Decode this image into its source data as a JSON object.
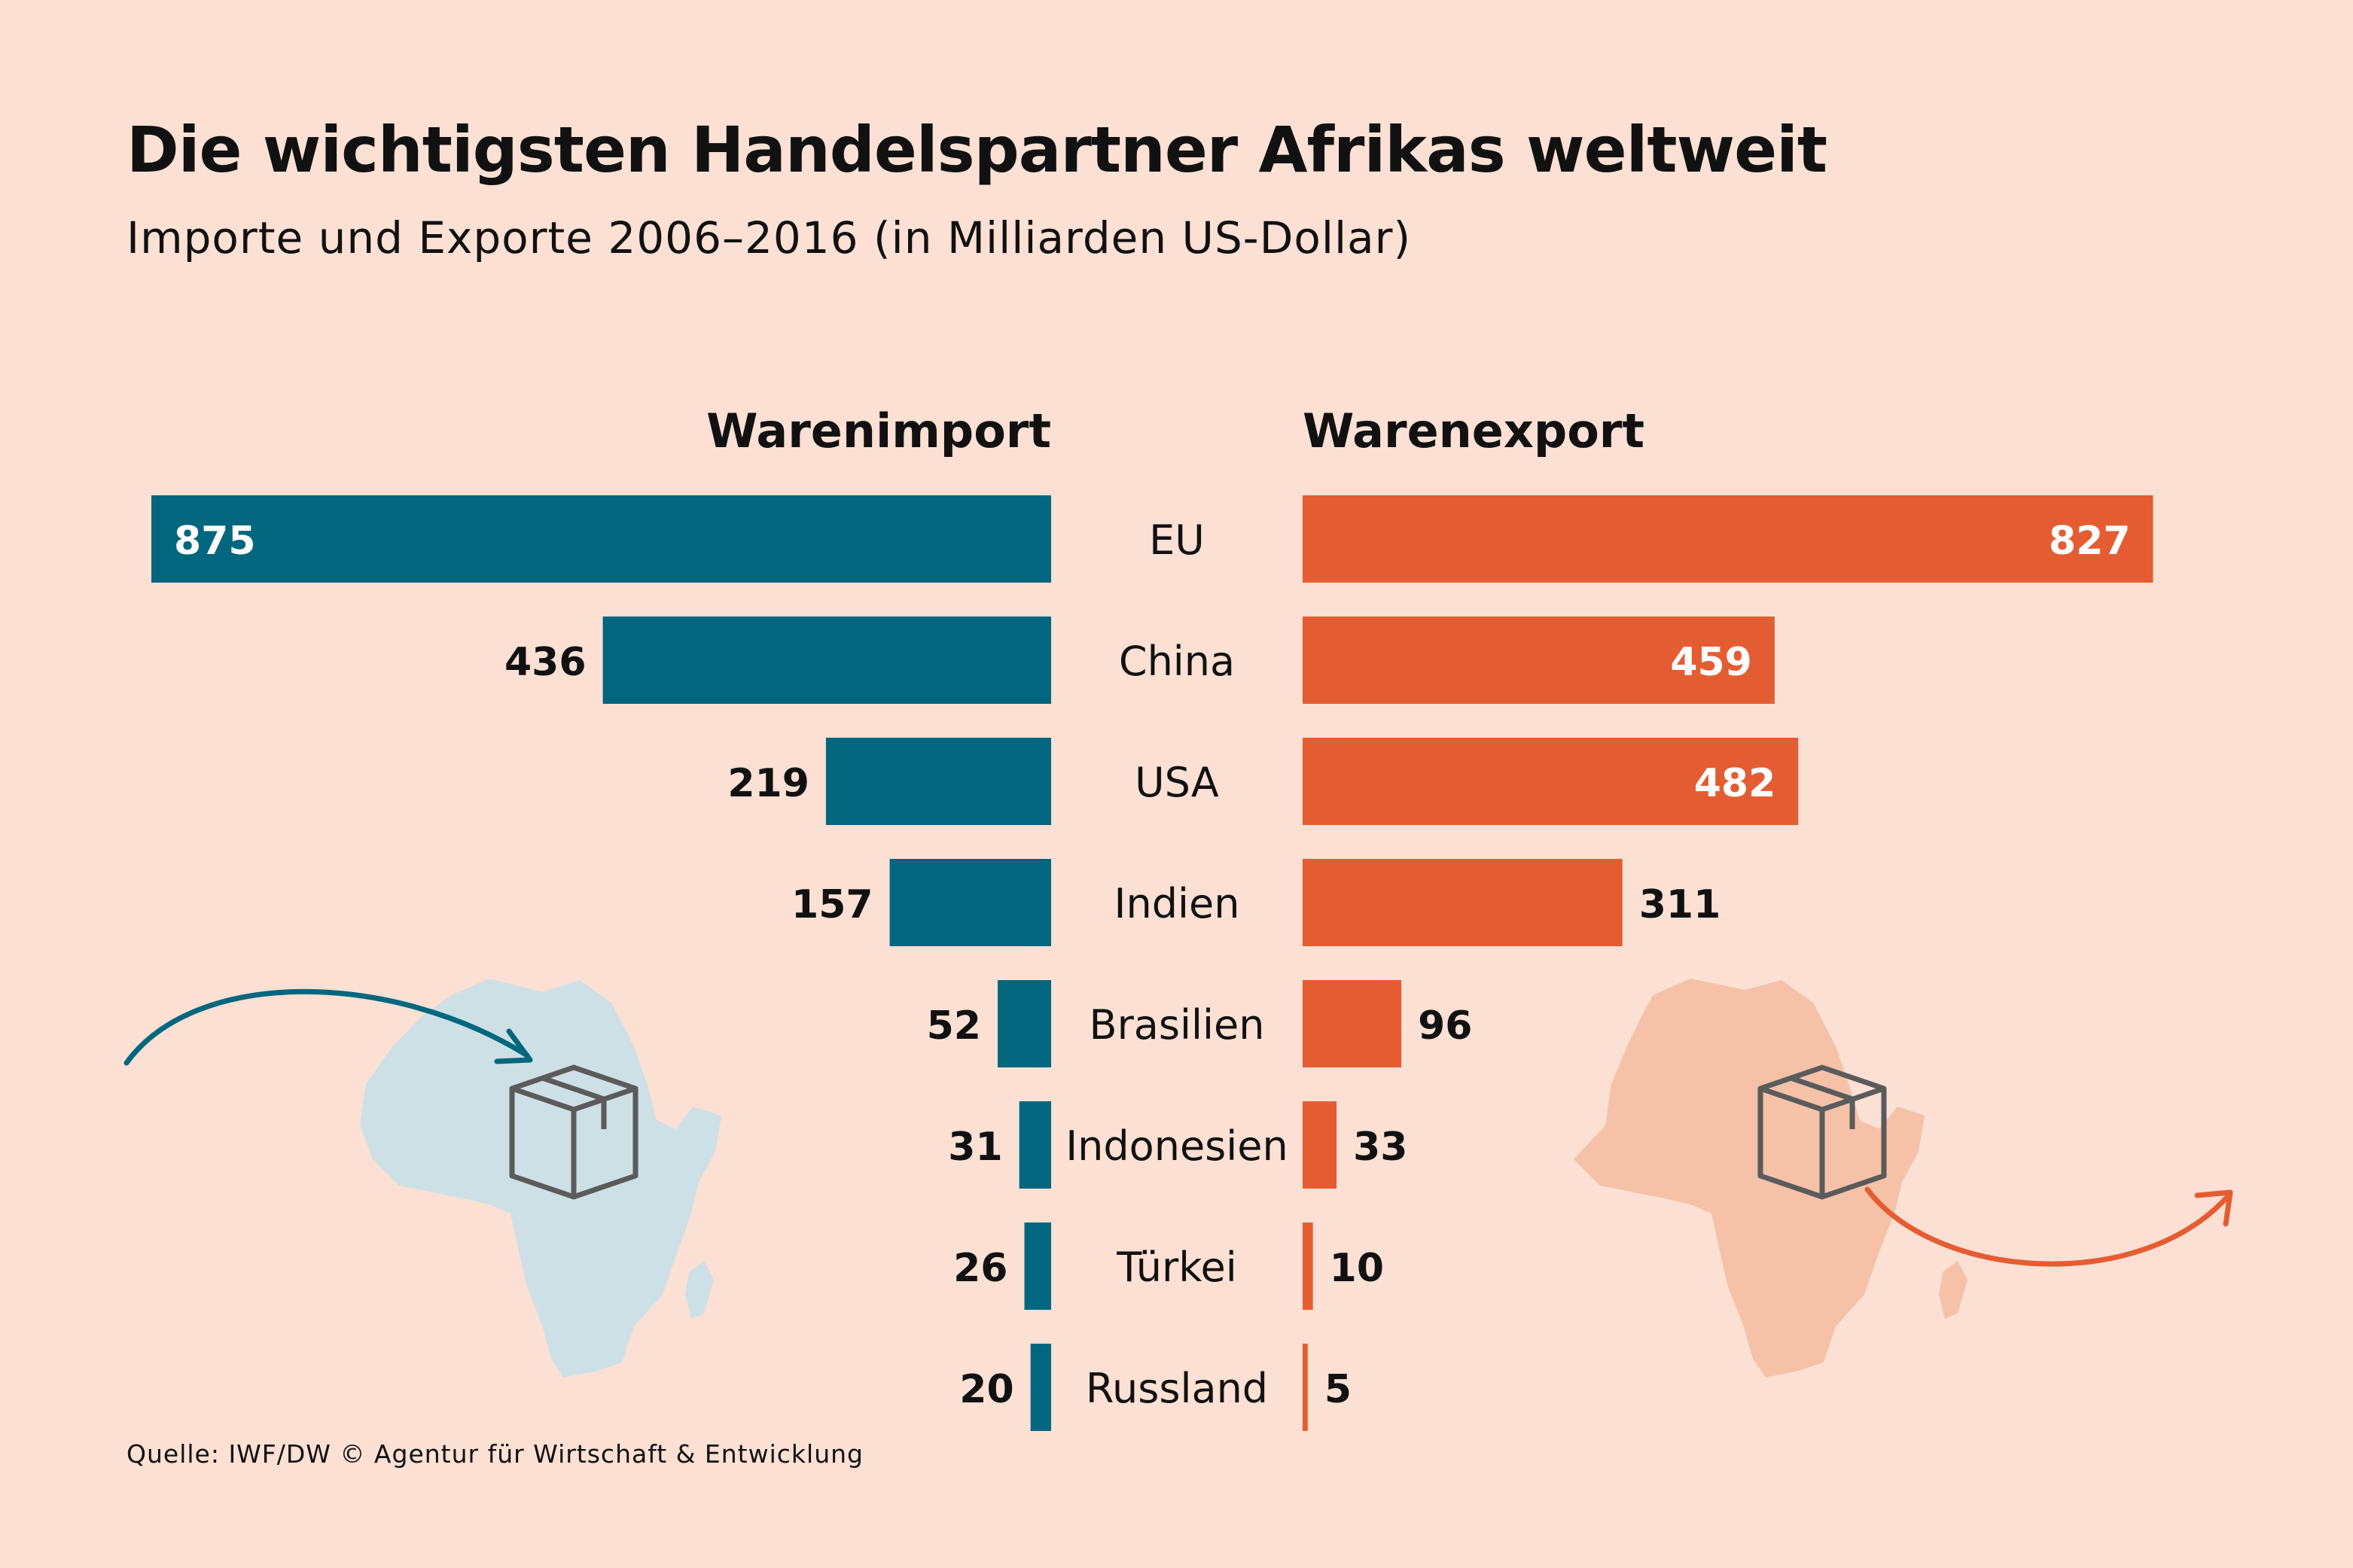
{
  "title": "Die wichtigsten Handelspartner Afrikas weltweit",
  "subtitle": "Importe und Exporte 2006–2016 (in Milliarden US-Dollar)",
  "source": "Quelle: IWF/DW © Agentur für Wirtschaft & Entwicklung",
  "colors": {
    "background": "#fbe0d3",
    "import": "#02677e",
    "export": "#e45d32",
    "import_map": "#cde0e6",
    "export_map": "#f5c2a8",
    "icon": "#5b5b5b"
  },
  "chart_data": {
    "type": "bar",
    "orientation": "horizontal-butterfly",
    "title": "Die wichtigsten Handelspartner Afrikas weltweit",
    "subtitle": "Importe und Exporte 2006–2016 (in Milliarden US-Dollar)",
    "unit": "Milliarden US-Dollar",
    "categories": [
      "EU",
      "China",
      "USA",
      "Indien",
      "Brasilien",
      "Indonesien",
      "Türkei",
      "Russland"
    ],
    "series": [
      {
        "name": "Warenimport",
        "values": [
          875,
          436,
          219,
          157,
          52,
          31,
          26,
          20
        ]
      },
      {
        "name": "Warenexport",
        "values": [
          827,
          459,
          482,
          311,
          96,
          33,
          10,
          5
        ]
      }
    ],
    "xlim": [
      0,
      875
    ]
  }
}
